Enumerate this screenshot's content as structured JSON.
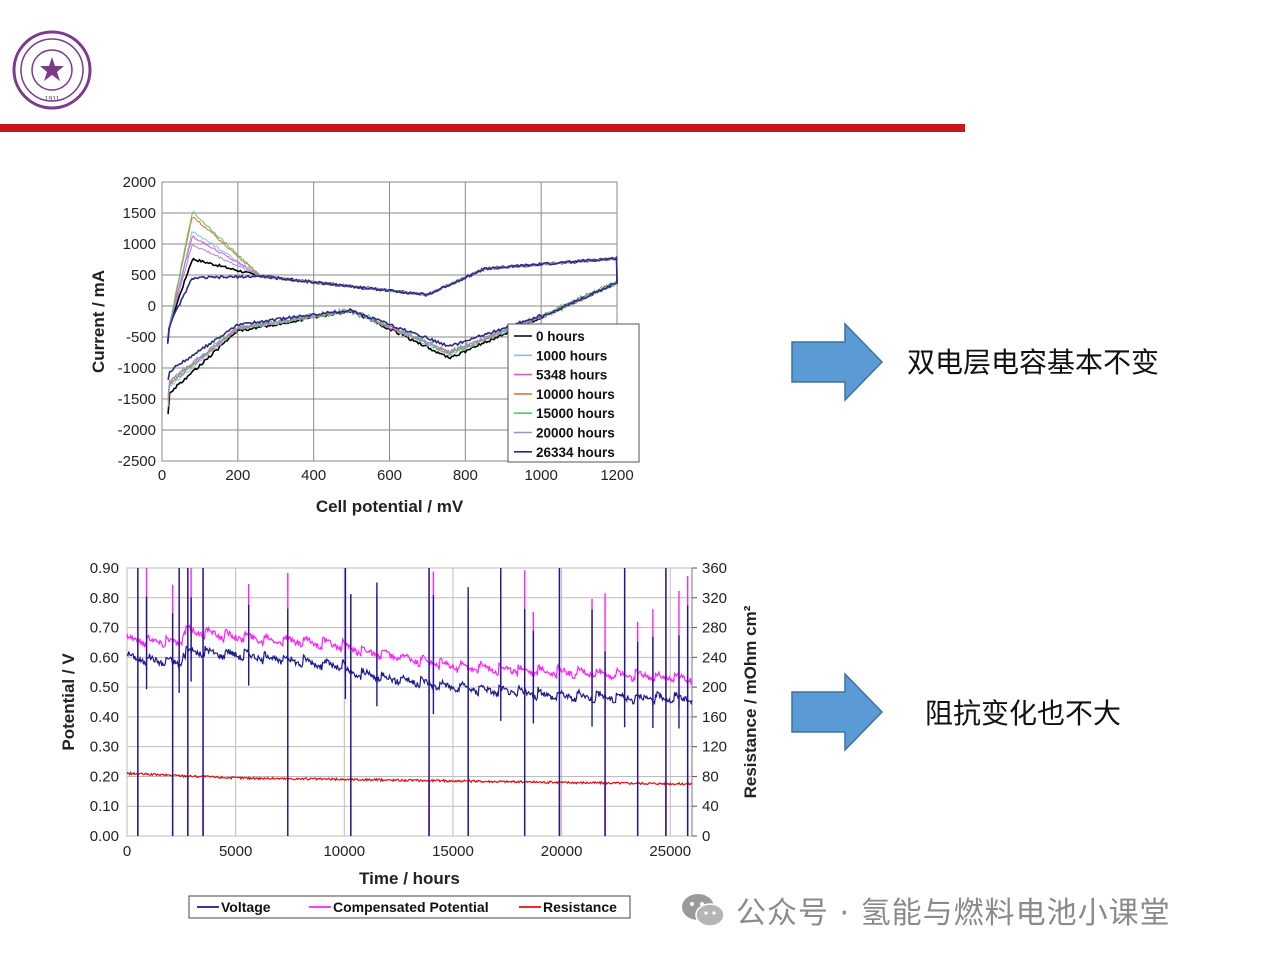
{
  "notes": {
    "top": "双电层电容基本不变",
    "bottom": "阻抗变化也不大"
  },
  "watermark": {
    "text": "公众号 · 氢能与燃料电池小课堂",
    "icon": "wechat-icon"
  },
  "logo": {
    "icon": "university-seal-icon",
    "year": "1911",
    "color": "#7b3a8c"
  },
  "colors": {
    "accent_bar": "#c8161d",
    "arrow": "#5b9bd5"
  },
  "chart_data": [
    {
      "type": "line",
      "title": "",
      "xlabel": "Cell potential  / mV",
      "ylabel": "Current / mA",
      "xlim": [
        0,
        1200
      ],
      "ylim": [
        -2500,
        2000
      ],
      "xticks": [
        "0",
        "200",
        "400",
        "600",
        "800",
        "1000",
        "1200"
      ],
      "yticks": [
        "2000",
        "1500",
        "1000",
        "500",
        "0",
        "-500",
        "-1000",
        "-1500",
        "-2000",
        "-2500"
      ],
      "grid": true,
      "legend": "bottom-right",
      "series": [
        {
          "name": "0 hours",
          "color": "#000000",
          "scale": 1.0,
          "peak": 760
        },
        {
          "name": "1000 hours",
          "color": "#7ec8e3",
          "scale": 0.93,
          "peak": 1300
        },
        {
          "name": "5348 hours",
          "color": "#d957d9",
          "scale": 0.9,
          "peak": 1250
        },
        {
          "name": "10000 hours",
          "color": "#e3743a",
          "scale": 0.88,
          "peak": 1650
        },
        {
          "name": "15000 hours",
          "color": "#5ac85a",
          "scale": 0.87,
          "peak": 1750
        },
        {
          "name": "20000 hours",
          "color": "#a08adc",
          "scale": 0.86,
          "peak": 1150
        },
        {
          "name": "26334 hours",
          "color": "#2b2b8c",
          "scale": 0.75,
          "peak": 600
        }
      ]
    },
    {
      "type": "line",
      "title": "",
      "xlabel": "Time / hours",
      "ylabel": "Potential / V",
      "y2label": "Resistance / mOhm cm²",
      "xlim": [
        0,
        26000
      ],
      "ylim": [
        0,
        0.9
      ],
      "y2lim": [
        0,
        360
      ],
      "xticks": [
        "0",
        "5000",
        "10000",
        "15000",
        "20000",
        "25000"
      ],
      "yticks": [
        "0.90",
        "0.80",
        "0.70",
        "0.60",
        "0.50",
        "0.40",
        "0.30",
        "0.20",
        "0.10",
        "0.00"
      ],
      "y2ticks": [
        "360",
        "320",
        "280",
        "240",
        "200",
        "160",
        "120",
        "80",
        "40",
        "0"
      ],
      "grid": true,
      "legend": "bottom",
      "series": [
        {
          "name": "Voltage",
          "color": "#1a1a8c",
          "x": [
            0,
            2500,
            2600,
            5000,
            10000,
            10100,
            15000,
            20000,
            26000
          ],
          "y": [
            0.6,
            0.58,
            0.62,
            0.61,
            0.57,
            0.55,
            0.5,
            0.47,
            0.46
          ]
        },
        {
          "name": "Compensated Potential",
          "color": "#ff22ff",
          "x": [
            0,
            2500,
            2600,
            5000,
            10000,
            10100,
            15000,
            20000,
            26000
          ],
          "y": [
            0.66,
            0.65,
            0.69,
            0.67,
            0.64,
            0.63,
            0.57,
            0.55,
            0.53
          ]
        },
        {
          "name": "Resistance",
          "color": "#e01010",
          "axis": "y2",
          "x": [
            0,
            5000,
            10000,
            15000,
            20000,
            26000
          ],
          "y": [
            84,
            78,
            76,
            74,
            72,
            70
          ]
        }
      ]
    }
  ]
}
